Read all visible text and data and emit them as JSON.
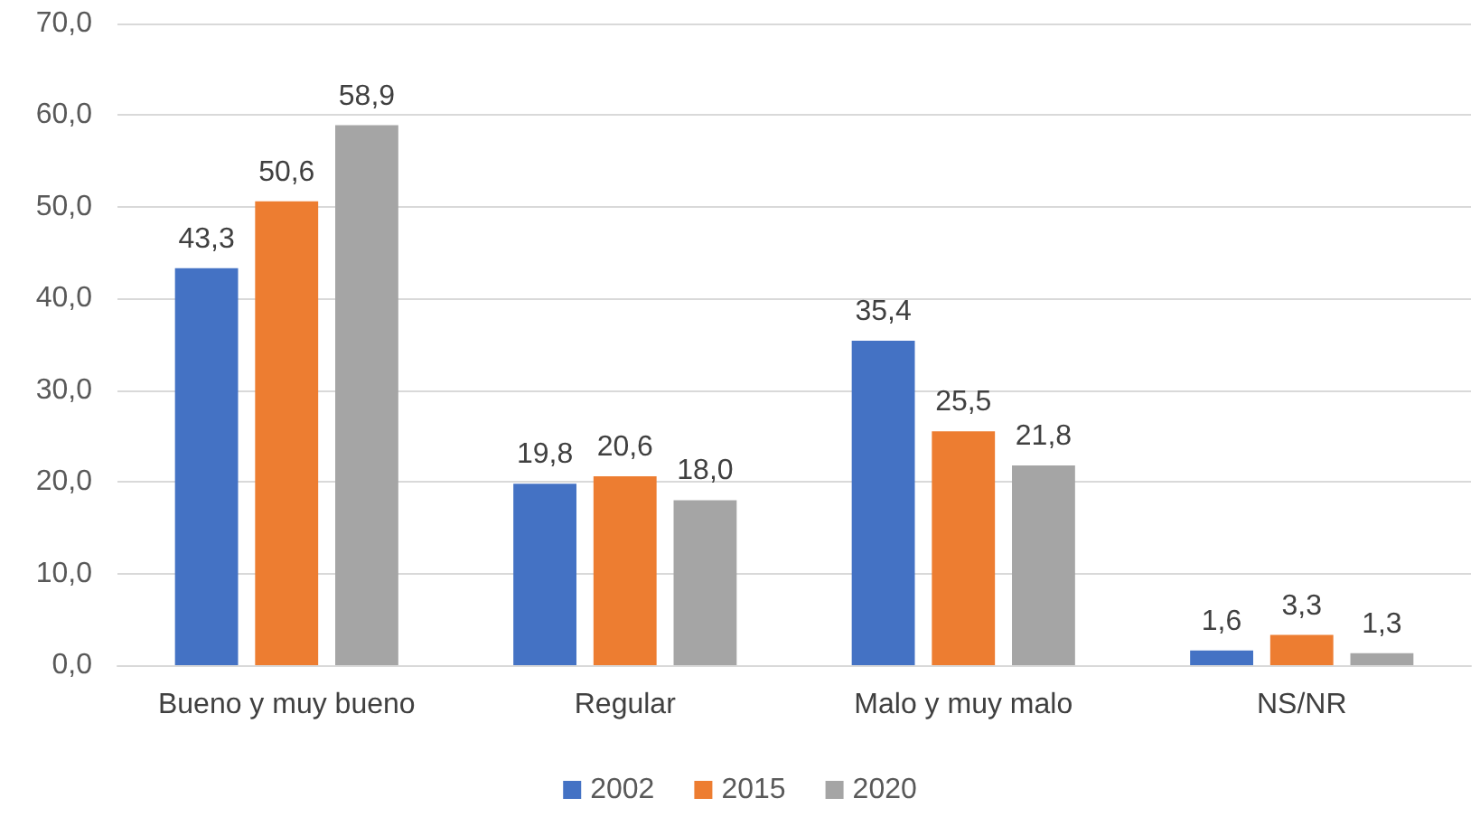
{
  "chart_data": {
    "type": "bar",
    "categories": [
      "Bueno y muy bueno",
      "Regular",
      "Malo y muy malo",
      "NS/NR"
    ],
    "series": [
      {
        "name": "2002",
        "color": "#4472c4",
        "values": [
          43.3,
          19.8,
          35.4,
          1.6
        ],
        "value_labels": [
          "43,3",
          "19,8",
          "35,4",
          "1,6"
        ]
      },
      {
        "name": "2015",
        "color": "#ed7d31",
        "values": [
          50.6,
          20.6,
          25.5,
          3.3
        ],
        "value_labels": [
          "50,6",
          "20,6",
          "25,5",
          "3,3"
        ]
      },
      {
        "name": "2020",
        "color": "#a5a5a5",
        "values": [
          58.9,
          18.0,
          21.8,
          1.3
        ],
        "value_labels": [
          "58,9",
          "18,0",
          "21,8",
          "1,3"
        ]
      }
    ],
    "ylim": [
      0,
      70
    ],
    "yticks": [
      {
        "value": 0,
        "label": "0,0"
      },
      {
        "value": 10,
        "label": "10,0"
      },
      {
        "value": 20,
        "label": "20,0"
      },
      {
        "value": 30,
        "label": "30,0"
      },
      {
        "value": 40,
        "label": "40,0"
      },
      {
        "value": 50,
        "label": "50,0"
      },
      {
        "value": 60,
        "label": "60,0"
      },
      {
        "value": 70,
        "label": "70,0"
      }
    ],
    "grid": "y",
    "legend": "bottom"
  }
}
